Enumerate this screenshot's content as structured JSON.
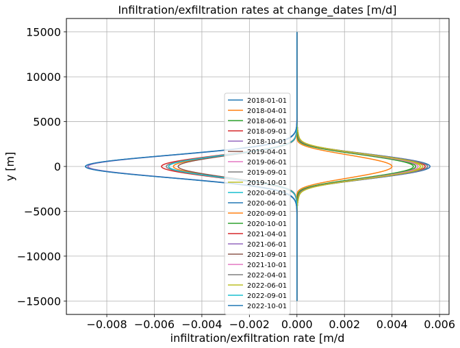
{
  "chart_data": {
    "type": "line",
    "title": "Infiltration/exfiltration rates at change_dates [m/d]",
    "xlabel": "infiltration/exfiltration rate [m/d",
    "ylabel": "y [m]",
    "xlim": [
      -0.0097,
      0.0064
    ],
    "ylim": [
      -16500,
      16500
    ],
    "xticks": [
      -0.008,
      -0.006,
      -0.004,
      -0.002,
      0.0,
      0.002,
      0.004,
      0.006
    ],
    "xtick_labels": [
      "−0.008",
      "−0.006",
      "−0.004",
      "−0.002",
      "0.000",
      "0.002",
      "0.004",
      "0.006"
    ],
    "yticks": [
      -15000,
      -10000,
      -5000,
      0,
      5000,
      10000,
      15000
    ],
    "ytick_labels": [
      "−15000",
      "−10000",
      "−5000",
      "0",
      "5000",
      "10000",
      "15000"
    ],
    "grid": true,
    "legend_position": "center",
    "y_range": [
      -15000,
      15000
    ],
    "series": [
      {
        "name": "2018-01-01",
        "color": "#1f77b4",
        "peak": -0.0089,
        "width": 1250,
        "ripple": 0.0
      },
      {
        "name": "2018-04-01",
        "color": "#ff7f0e",
        "peak": 0.004,
        "width": 1200,
        "ripple": 0.0003
      },
      {
        "name": "2018-06-01",
        "color": "#2ca02c",
        "peak": 0.0049,
        "width": 1250,
        "ripple": 0.0004
      },
      {
        "name": "2018-09-01",
        "color": "#d62728",
        "peak": -0.0057,
        "width": 1200,
        "ripple": 0.0002
      },
      {
        "name": "2018-10-01",
        "color": "#9467bd",
        "peak": -0.0088,
        "width": 1250,
        "ripple": 0.0001
      },
      {
        "name": "2019-04-01",
        "color": "#8c564b",
        "peak": 0.0055,
        "width": 1300,
        "ripple": 0.0005
      },
      {
        "name": "2019-06-01",
        "color": "#e377c2",
        "peak": 0.0056,
        "width": 1300,
        "ripple": 0.0005
      },
      {
        "name": "2019-09-01",
        "color": "#7f7f7f",
        "peak": -0.0055,
        "width": 1200,
        "ripple": 0.0002
      },
      {
        "name": "2019-10-01",
        "color": "#bcbd22",
        "peak": 0.0052,
        "width": 1300,
        "ripple": 0.0004
      },
      {
        "name": "2020-04-01",
        "color": "#17becf",
        "peak": 0.0055,
        "width": 1300,
        "ripple": 0.0005
      },
      {
        "name": "2020-06-01",
        "color": "#1f77b4",
        "peak": 0.0056,
        "width": 1300,
        "ripple": 0.0005
      },
      {
        "name": "2020-09-01",
        "color": "#ff7f0e",
        "peak": -0.0052,
        "width": 1200,
        "ripple": 0.0002
      },
      {
        "name": "2020-10-01",
        "color": "#2ca02c",
        "peak": 0.005,
        "width": 1300,
        "ripple": 0.0004
      },
      {
        "name": "2021-04-01",
        "color": "#d62728",
        "peak": 0.0054,
        "width": 1300,
        "ripple": 0.0005
      },
      {
        "name": "2021-06-01",
        "color": "#9467bd",
        "peak": 0.0055,
        "width": 1300,
        "ripple": 0.0005
      },
      {
        "name": "2021-09-01",
        "color": "#8c564b",
        "peak": -0.005,
        "width": 1200,
        "ripple": 0.0002
      },
      {
        "name": "2021-10-01",
        "color": "#e377c2",
        "peak": 0.0051,
        "width": 1300,
        "ripple": 0.0004
      },
      {
        "name": "2022-04-01",
        "color": "#7f7f7f",
        "peak": 0.0055,
        "width": 1300,
        "ripple": 0.0005
      },
      {
        "name": "2022-06-01",
        "color": "#bcbd22",
        "peak": 0.0053,
        "width": 1300,
        "ripple": 0.0004
      },
      {
        "name": "2022-09-01",
        "color": "#17becf",
        "peak": -0.0054,
        "width": 1200,
        "ripple": 0.0002
      },
      {
        "name": "2022-10-01",
        "color": "#1f77b4",
        "peak": -0.0089,
        "width": 1250,
        "ripple": 0.0001
      }
    ]
  }
}
